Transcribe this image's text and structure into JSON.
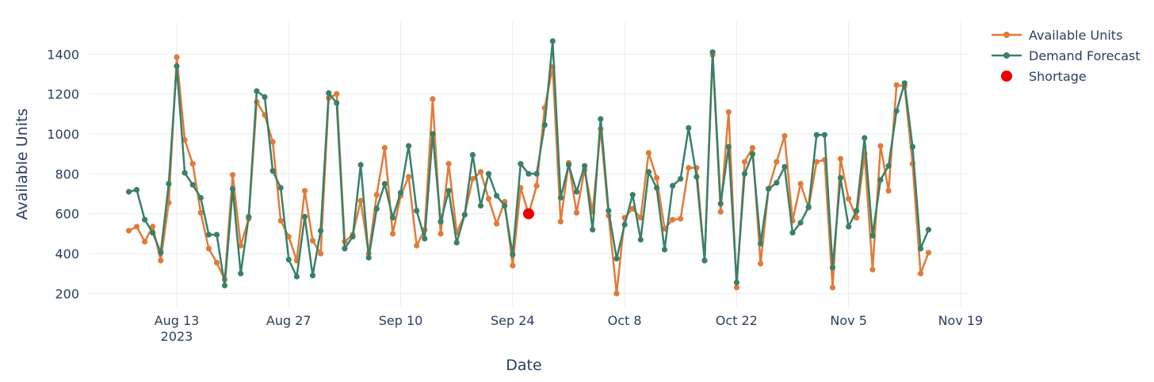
{
  "chart_data": {
    "type": "line",
    "xlabel": "Date",
    "ylabel": "Available Units",
    "xlim": [
      "2023-08-02",
      "2023-11-20"
    ],
    "ylim": [
      130,
      1560
    ],
    "y_ticks": [
      200,
      400,
      600,
      800,
      1000,
      1200,
      1400
    ],
    "x_ticks": [
      {
        "date": "2023-08-13",
        "label": "Aug 13",
        "sublabel": "2023"
      },
      {
        "date": "2023-08-27",
        "label": "Aug 27"
      },
      {
        "date": "2023-09-10",
        "label": "Sep 10"
      },
      {
        "date": "2023-09-24",
        "label": "Sep 24"
      },
      {
        "date": "2023-10-08",
        "label": "Oct 8"
      },
      {
        "date": "2023-10-22",
        "label": "Oct 22"
      },
      {
        "date": "2023-11-05",
        "label": "Nov 5"
      },
      {
        "date": "2023-11-19",
        "label": "Nov 19"
      }
    ],
    "grid": true,
    "legend_position": "top-right",
    "x_start_date": "2023-08-07",
    "series": [
      {
        "name": "Available Units",
        "color": "#e07b39",
        "mode": "lines+markers",
        "values": [
          515,
          535,
          460,
          535,
          365,
          655,
          1385,
          970,
          850,
          605,
          425,
          355,
          270,
          795,
          440,
          575,
          1160,
          1095,
          960,
          565,
          485,
          365,
          715,
          465,
          400,
          1180,
          1200,
          460,
          495,
          665,
          400,
          695,
          930,
          500,
          690,
          785,
          440,
          520,
          1175,
          500,
          850,
          505,
          595,
          775,
          810,
          675,
          550,
          660,
          340,
          730,
          600,
          740,
          1130,
          1335,
          560,
          855,
          605,
          820,
          610,
          1025,
          590,
          200,
          580,
          625,
          580,
          905,
          780,
          525,
          570,
          575,
          830,
          830,
          365,
          1395,
          610,
          1110,
          230,
          860,
          930,
          350,
          725,
          860,
          990,
          565,
          750,
          630,
          860,
          870,
          230,
          875,
          675,
          580,
          900,
          320,
          940,
          715,
          1245,
          1240,
          850,
          300,
          405
        ]
      },
      {
        "name": "Demand Forecast",
        "color": "#3a8068",
        "mode": "lines+markers",
        "values": [
          710,
          720,
          570,
          505,
          405,
          750,
          1340,
          805,
          745,
          680,
          495,
          495,
          240,
          725,
          300,
          585,
          1215,
          1185,
          815,
          730,
          370,
          285,
          585,
          290,
          515,
          1205,
          1155,
          425,
          485,
          845,
          380,
          625,
          750,
          580,
          705,
          940,
          615,
          475,
          1000,
          560,
          715,
          455,
          595,
          895,
          640,
          800,
          690,
          640,
          395,
          850,
          800,
          800,
          1045,
          1465,
          680,
          845,
          710,
          840,
          520,
          1075,
          615,
          375,
          545,
          695,
          470,
          810,
          730,
          420,
          740,
          775,
          1030,
          785,
          365,
          1410,
          650,
          935,
          255,
          800,
          900,
          450,
          725,
          755,
          835,
          505,
          555,
          635,
          995,
          995,
          330,
          780,
          535,
          615,
          980,
          490,
          770,
          840,
          1115,
          1255,
          935,
          425,
          520
        ]
      },
      {
        "name": "Shortage",
        "color": "#ee0000",
        "mode": "markers",
        "points": [
          {
            "date": "2023-09-26",
            "value": 600
          }
        ]
      }
    ]
  }
}
